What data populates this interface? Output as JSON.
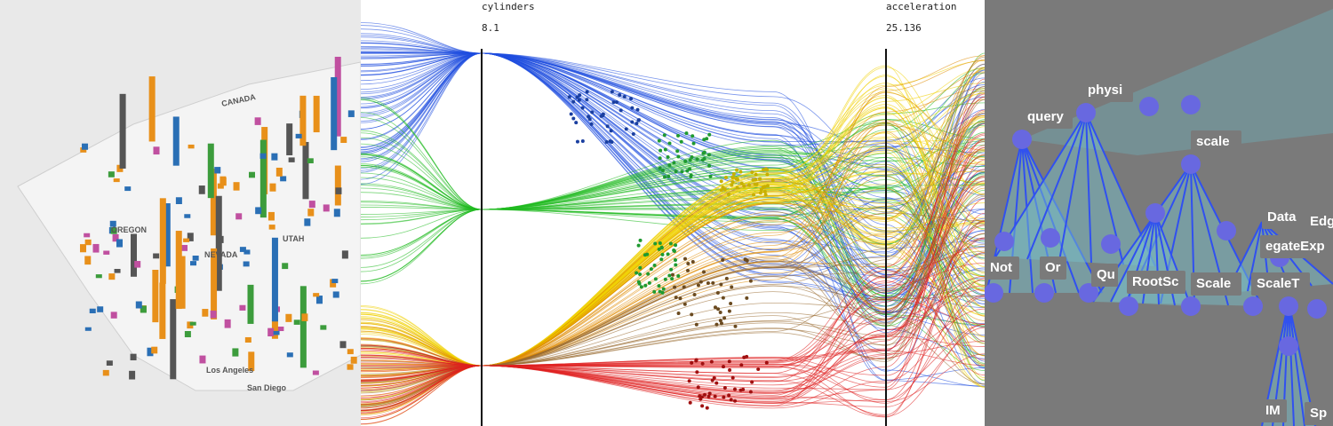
{
  "map_panel": {
    "labels": [
      "CANADA",
      "OREGON",
      "NEVADA",
      "UTAH",
      "Los Angeles",
      "San Diego"
    ]
  },
  "parallel_panel": {
    "axes": [
      {
        "name": "cylinders",
        "top": 8.1
      },
      {
        "name": "acceleration",
        "top": 25.136
      }
    ]
  },
  "graph_panel": {
    "nodes": [
      "query",
      "physi",
      "scale",
      "Data",
      "Edg",
      "egateExp",
      "Not",
      "Or",
      "Qu",
      "RootSc",
      "Scale",
      "ScaleT",
      "IM",
      "Sp"
    ]
  }
}
